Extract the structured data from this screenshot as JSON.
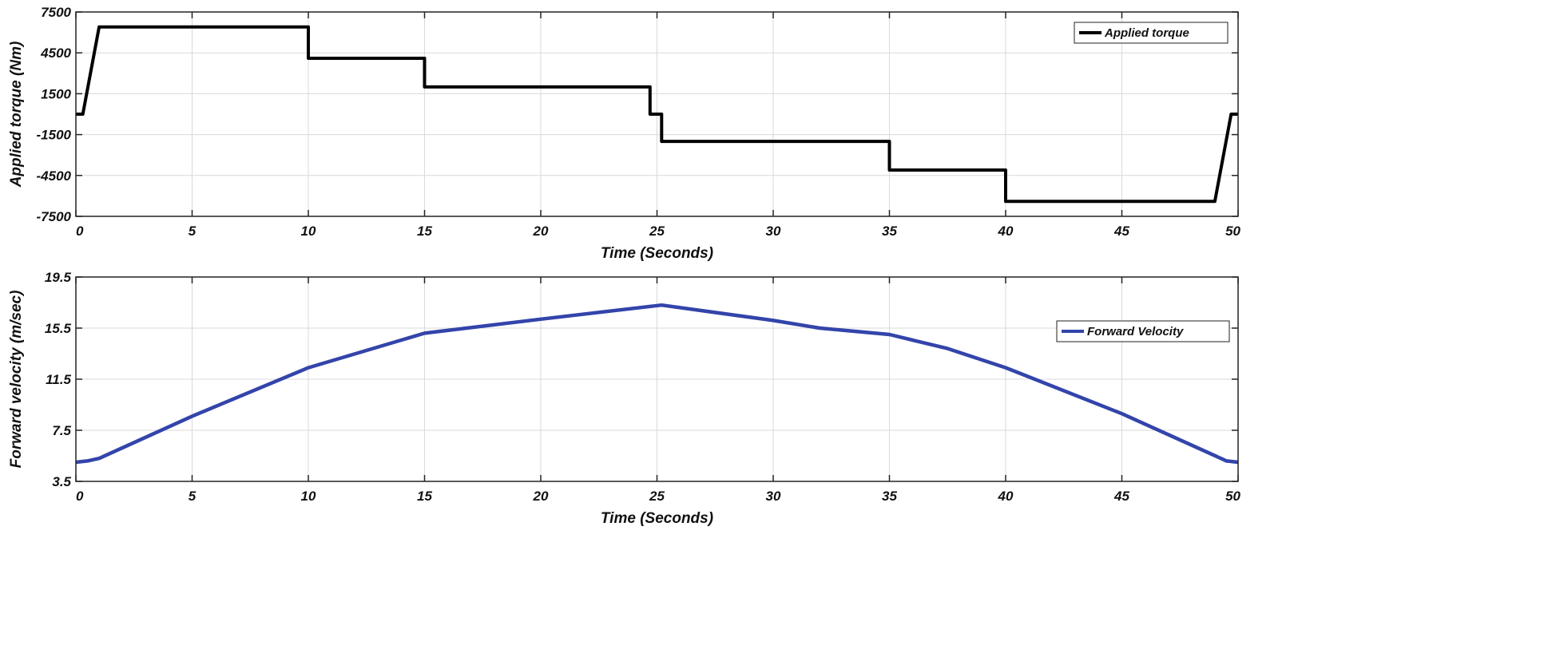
{
  "chart_data": [
    {
      "type": "line",
      "xlabel": "Time (Seconds)",
      "ylabel": "Applied torque (Nm)",
      "xlim": [
        0,
        50
      ],
      "ylim": [
        -7500,
        7500
      ],
      "xticks": [
        0,
        5,
        10,
        15,
        20,
        25,
        30,
        35,
        40,
        45,
        50
      ],
      "yticks": [
        -7500,
        -4500,
        -1500,
        1500,
        4500,
        7500
      ],
      "grid": true,
      "legend_position": "top-right",
      "series": [
        {
          "name": "Applied torque",
          "color": "#000000",
          "x": [
            0,
            0.3,
            1,
            10,
            10,
            15,
            15,
            24.7,
            24.7,
            25.2,
            25.2,
            35,
            35,
            40,
            40,
            49,
            49.7,
            50
          ],
          "y": [
            0,
            0,
            6400,
            6400,
            4100,
            4100,
            2000,
            2000,
            0,
            0,
            -2000,
            -2000,
            -4100,
            -4100,
            -6400,
            -6400,
            0,
            0
          ]
        }
      ]
    },
    {
      "type": "line",
      "xlabel": "Time (Seconds)",
      "ylabel": "Forward velocity (m/sec)",
      "xlim": [
        0,
        50
      ],
      "ylim": [
        3.5,
        19.5
      ],
      "xticks": [
        0,
        5,
        10,
        15,
        20,
        25,
        30,
        35,
        40,
        45,
        50
      ],
      "yticks": [
        3.5,
        7.5,
        11.5,
        15.5,
        19.5
      ],
      "grid": true,
      "legend_position": "middle-right",
      "series": [
        {
          "name": "Forward Velocity",
          "color": "#3344aa",
          "x": [
            0,
            0.5,
            1,
            5,
            10,
            15,
            20,
            25.2,
            30,
            32,
            35,
            37.5,
            40,
            45,
            49.5,
            50
          ],
          "y": [
            5.0,
            5.1,
            5.3,
            8.6,
            12.4,
            15.1,
            16.2,
            17.3,
            16.1,
            15.5,
            15.0,
            13.9,
            12.4,
            8.8,
            5.1,
            5.0
          ]
        }
      ]
    }
  ]
}
